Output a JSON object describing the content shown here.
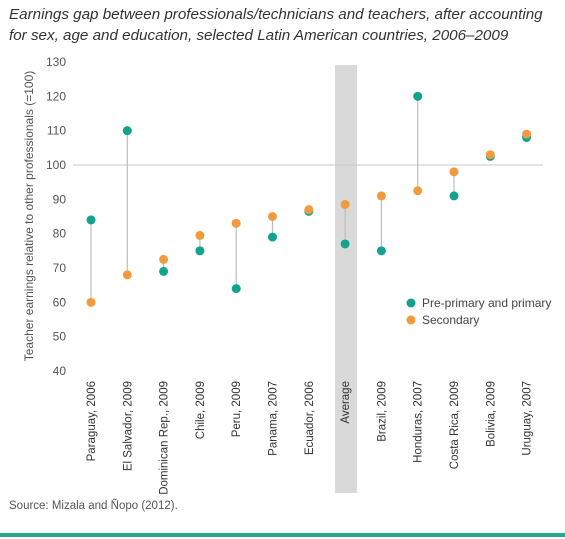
{
  "title": "Earnings gap between professionals/technicians and teachers, after accounting for sex, age and education, selected Latin American countries, 2006–2009",
  "source": "Source: Mizala and Ñopo (2012).",
  "colors": {
    "pre_primary": "#12a38e",
    "secondary": "#f29a3e",
    "connector": "#bdbdbd",
    "highlight_band": "#d9d9d9",
    "reference_line": "#c8c8c8",
    "accent_rule": "#2aa591"
  },
  "chart_data": {
    "type": "scatter",
    "ylabel": "Teacher earnings relative to other professionals (=100)",
    "ylim": [
      40,
      130
    ],
    "yticks": [
      40,
      50,
      60,
      70,
      80,
      90,
      100,
      110,
      120,
      130
    ],
    "reference_value": 100,
    "highlight_category": "Average",
    "categories": [
      "Paraguay, 2006",
      "El Salvador, 2009",
      "Dominican Rep., 2009",
      "Chile, 2009",
      "Peru, 2009",
      "Panama, 2007",
      "Ecuador, 2006",
      "Average",
      "Brazil, 2009",
      "Honduras, 2007",
      "Costa Rica, 2009",
      "Bolivia, 2009",
      "Uruguay, 2007"
    ],
    "series": [
      {
        "name": "Pre-primary and primary",
        "color_key": "pre_primary",
        "values": [
          84,
          110,
          69,
          75,
          64,
          79,
          86.5,
          77,
          75,
          120,
          91,
          102.5,
          108
        ]
      },
      {
        "name": "Secondary",
        "color_key": "secondary",
        "values": [
          60,
          68,
          72.5,
          79.5,
          83,
          85,
          87,
          88.5,
          91,
          92.5,
          98,
          103,
          109
        ]
      }
    ],
    "legend_position": "right"
  }
}
